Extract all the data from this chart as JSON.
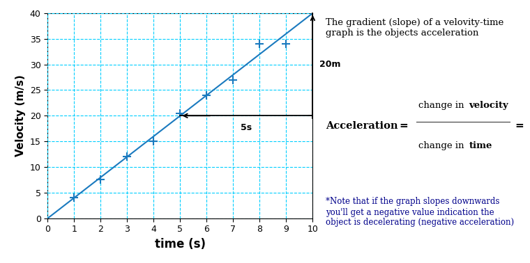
{
  "xlabel": "time (s)",
  "ylabel": "Velocity (m/s)",
  "xlim": [
    0,
    10
  ],
  "ylim": [
    0,
    40
  ],
  "xticks": [
    0,
    1,
    2,
    3,
    4,
    5,
    6,
    7,
    8,
    9,
    10
  ],
  "yticks": [
    0,
    5,
    10,
    15,
    20,
    25,
    30,
    35,
    40
  ],
  "line_x": [
    0,
    10
  ],
  "line_y": [
    0,
    40
  ],
  "line_color": "#1a7abf",
  "grid_color": "#00cfff",
  "data_points_x": [
    1,
    2,
    3,
    4,
    5,
    6,
    7,
    8,
    9
  ],
  "data_points_y": [
    4,
    7.5,
    12,
    15,
    20.5,
    24,
    27,
    34,
    34
  ],
  "marker_color": "#1a7abf",
  "annotation_20m": "20m",
  "annotation_5s": "5s",
  "rise_x": 10,
  "rise_y1": 20,
  "rise_y2": 40,
  "run_x1": 5,
  "run_x2": 10,
  "run_y": 20,
  "text_gradient": "The gradient (slope) of a velovity-time\ngraph is the objects acceleration",
  "text_note": "*Note that if the graph slopes downwards\nyou'll get a negative value indication the\nobject is decelerating (negative acceleration)",
  "bg_color": "#ffffff",
  "font_color_axis": "#000000",
  "font_color_note": "#00008b"
}
